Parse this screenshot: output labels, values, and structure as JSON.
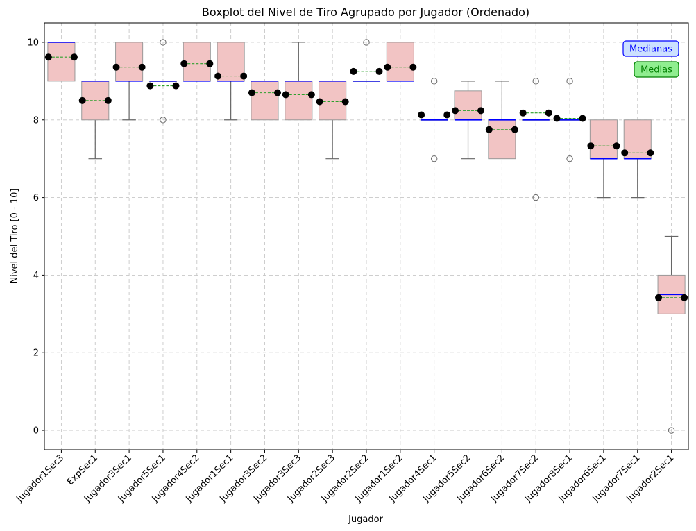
{
  "chart_data": {
    "type": "boxplot",
    "title": "Boxplot del Nivel de Tiro Agrupado por Jugador (Ordenado)",
    "xlabel": "Jugador",
    "ylabel": "Nivel del Tiro [0 - 10]",
    "ylim": [
      -0.5,
      10.5
    ],
    "yticks": [
      0,
      2,
      4,
      6,
      8,
      10
    ],
    "grid": true,
    "legend": {
      "placement": "top-right",
      "items": [
        {
          "label": "Medianas",
          "color": "#0000ff",
          "face": "#cce0ff"
        },
        {
          "label": "Medias",
          "color": "#008000",
          "face": "#90ee90"
        }
      ]
    },
    "colors": {
      "box_fill": "#f2c4c4",
      "box_edge": "#999999",
      "median": "#0000ff",
      "mean": "#2ca02c",
      "mean_marker": "#000000",
      "whisker": "#666666",
      "grid": "#c8c8c8"
    },
    "categories": [
      "Jugador1Sec3",
      "ExpSec1",
      "Jugador3Sec1",
      "Jugador5Sec1",
      "Jugador4Sec2",
      "Jugador1Sec1",
      "Jugador3Sec2",
      "Jugador3Sec3",
      "Jugador2Sec3",
      "Jugador2Sec2",
      "Jugador1Sec2",
      "Jugador4Sec1",
      "Jugador5Sec2",
      "Jugador6Sec2",
      "Jugador7Sec2",
      "Jugador8Sec1",
      "Jugador6Sec1",
      "Jugador7Sec1",
      "Jugador2Sec1"
    ],
    "boxes": [
      {
        "q1": 9,
        "median": 10,
        "q3": 10,
        "whislo": 9,
        "whishi": 10,
        "mean": 9.62,
        "fliers": []
      },
      {
        "q1": 8,
        "median": 9,
        "q3": 9,
        "whislo": 7,
        "whishi": 9,
        "mean": 8.5,
        "fliers": []
      },
      {
        "q1": 9,
        "median": 9,
        "q3": 10,
        "whislo": 8,
        "whishi": 10,
        "mean": 9.36,
        "fliers": []
      },
      {
        "q1": 9,
        "median": 9,
        "q3": 9,
        "whislo": 9,
        "whishi": 9,
        "mean": 8.88,
        "fliers": [
          10,
          8
        ]
      },
      {
        "q1": 9,
        "median": 9,
        "q3": 10,
        "whislo": 9,
        "whishi": 10,
        "mean": 9.45,
        "fliers": []
      },
      {
        "q1": 9,
        "median": 9,
        "q3": 10,
        "whislo": 8,
        "whishi": 10,
        "mean": 9.13,
        "fliers": []
      },
      {
        "q1": 8,
        "median": 9,
        "q3": 9,
        "whislo": 8,
        "whishi": 9,
        "mean": 8.7,
        "fliers": []
      },
      {
        "q1": 8,
        "median": 9,
        "q3": 9,
        "whislo": 8,
        "whishi": 10,
        "mean": 8.65,
        "fliers": []
      },
      {
        "q1": 8,
        "median": 9,
        "q3": 9,
        "whislo": 7,
        "whishi": 9,
        "mean": 8.47,
        "fliers": []
      },
      {
        "q1": 9,
        "median": 9,
        "q3": 9,
        "whislo": 9,
        "whishi": 9,
        "mean": 9.25,
        "fliers": [
          10
        ]
      },
      {
        "q1": 9,
        "median": 9,
        "q3": 10,
        "whislo": 9,
        "whishi": 10,
        "mean": 9.36,
        "fliers": []
      },
      {
        "q1": 8,
        "median": 8,
        "q3": 8,
        "whislo": 8,
        "whishi": 8,
        "mean": 8.13,
        "fliers": [
          9,
          7
        ]
      },
      {
        "q1": 8,
        "median": 8,
        "q3": 8.75,
        "whislo": 7,
        "whishi": 9,
        "mean": 8.24,
        "fliers": []
      },
      {
        "q1": 7,
        "median": 8,
        "q3": 8,
        "whislo": 7,
        "whishi": 9,
        "mean": 7.75,
        "fliers": []
      },
      {
        "q1": 8,
        "median": 8,
        "q3": 8,
        "whislo": 8,
        "whishi": 8,
        "mean": 8.18,
        "fliers": [
          9,
          6
        ]
      },
      {
        "q1": 8,
        "median": 8,
        "q3": 8,
        "whislo": 8,
        "whishi": 8,
        "mean": 8.04,
        "fliers": [
          9,
          7
        ]
      },
      {
        "q1": 7,
        "median": 7,
        "q3": 8,
        "whislo": 6,
        "whishi": 8,
        "mean": 7.33,
        "fliers": []
      },
      {
        "q1": 7,
        "median": 7,
        "q3": 8,
        "whislo": 6,
        "whishi": 8,
        "mean": 7.15,
        "fliers": []
      },
      {
        "q1": 3,
        "median": 3.5,
        "q3": 4,
        "whislo": 3,
        "whishi": 5,
        "mean": 3.42,
        "fliers": [
          0
        ]
      }
    ]
  }
}
